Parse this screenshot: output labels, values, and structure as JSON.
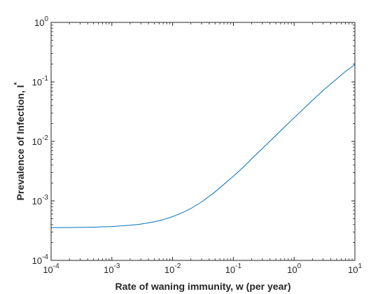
{
  "chart_data": {
    "type": "line",
    "title": "",
    "xlabel": "Rate of waning immunity, w (per year)",
    "ylabel": "Prevalence of Infection, I",
    "ylabel_superscript": "*",
    "xscale": "log",
    "yscale": "log",
    "xlim": [
      0.0001,
      10
    ],
    "ylim": [
      0.0001,
      1
    ],
    "grid": false,
    "x_ticks": [
      {
        "value": 0.0001,
        "base": "10",
        "exp": "-4"
      },
      {
        "value": 0.001,
        "base": "10",
        "exp": "-3"
      },
      {
        "value": 0.01,
        "base": "10",
        "exp": "-2"
      },
      {
        "value": 0.1,
        "base": "10",
        "exp": "-1"
      },
      {
        "value": 1,
        "base": "10",
        "exp": "0"
      },
      {
        "value": 10,
        "base": "10",
        "exp": "1"
      }
    ],
    "y_ticks": [
      {
        "value": 0.0001,
        "base": "10",
        "exp": "-4"
      },
      {
        "value": 0.001,
        "base": "10",
        "exp": "-3"
      },
      {
        "value": 0.01,
        "base": "10",
        "exp": "-2"
      },
      {
        "value": 0.1,
        "base": "10",
        "exp": "-1"
      },
      {
        "value": 1,
        "base": "10",
        "exp": "0"
      }
    ],
    "series": [
      {
        "color": "#0072bd",
        "x": [
          0.0001,
          0.0002,
          0.0005,
          0.001,
          0.002,
          0.003,
          0.005,
          0.007,
          0.01,
          0.015,
          0.02,
          0.03,
          0.05,
          0.07,
          0.1,
          0.15,
          0.2,
          0.3,
          0.5,
          0.7,
          1,
          1.5,
          2,
          3,
          5,
          7,
          10
        ],
        "y": [
          0.000355,
          0.000357,
          0.000362,
          0.000371,
          0.00039,
          0.000408,
          0.000445,
          0.000484,
          0.000545,
          0.000645,
          0.000745,
          0.00096,
          0.00142,
          0.0019,
          0.0026,
          0.0038,
          0.0051,
          0.0076,
          0.0126,
          0.0176,
          0.025,
          0.037,
          0.049,
          0.072,
          0.112,
          0.15,
          0.195
        ]
      }
    ]
  }
}
